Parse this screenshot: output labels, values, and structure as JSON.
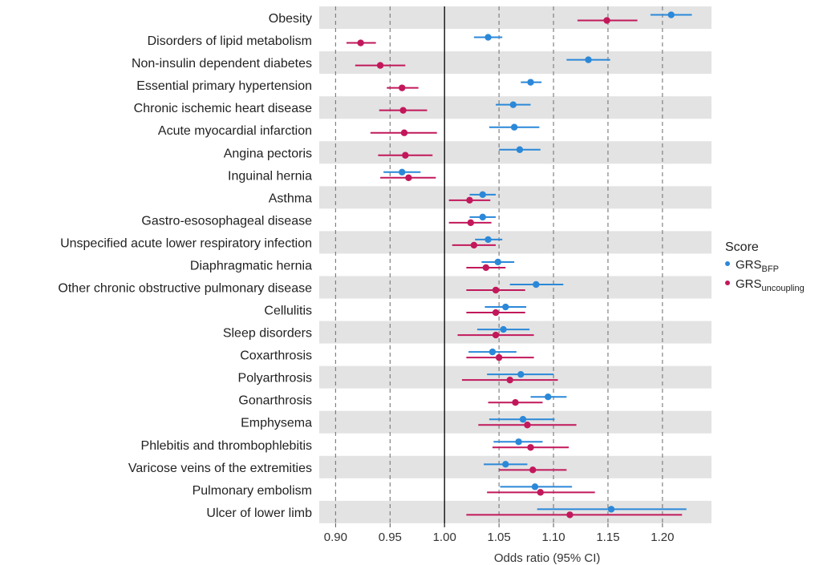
{
  "legend": {
    "title": "Score",
    "items": [
      {
        "base": "GRS",
        "sub": "BFP",
        "color": "#2b88d8"
      },
      {
        "base": "GRS",
        "sub": "uncoupling",
        "color": "#c2185b"
      }
    ]
  },
  "chart_data": {
    "type": "forest",
    "xlabel": "Odds ratio (95% CI)",
    "xlim": [
      0.885,
      1.245
    ],
    "xticks": [
      0.9,
      0.95,
      1.0,
      1.05,
      1.1,
      1.15,
      1.2
    ],
    "xtick_labels": [
      "0.90",
      "0.95",
      "1.00",
      "1.05",
      "1.10",
      "1.15",
      "1.20"
    ],
    "reference_line": 1.0,
    "grid": "dashed vertical",
    "legend_position": "right",
    "colors": {
      "bfp": "#2b88d8",
      "uncoupling": "#c2185b",
      "band": "#e3e3e3"
    },
    "categories": [
      "Obesity",
      "Disorders of lipid metabolism",
      "Non-insulin dependent diabetes",
      "Essential primary hypertension",
      "Chronic ischemic heart disease",
      "Acute myocardial infarction",
      "Angina pectoris",
      "Inguinal hernia",
      "Asthma",
      "Gastro-esosophageal disease",
      "Unspecified acute lower respiratory infection",
      "Diaphragmatic hernia",
      "Other chronic obstructive pulmonary disease",
      "Cellulitis",
      "Sleep disorders",
      "Coxarthrosis",
      "Polyarthrosis",
      "Gonarthrosis",
      "Emphysema",
      "Phlebitis and thrombophlebitis",
      "Varicose veins of the extremities",
      "Pulmonary embolism",
      "Ulcer of lower limb"
    ],
    "series": [
      {
        "name": "GRS BFP",
        "color": "#2b88d8",
        "estimate": [
          1.208,
          1.04,
          1.132,
          1.079,
          1.063,
          1.064,
          1.069,
          0.961,
          1.035,
          1.035,
          1.04,
          1.049,
          1.084,
          1.056,
          1.054,
          1.044,
          1.07,
          1.095,
          1.072,
          1.068,
          1.056,
          1.083,
          1.153
        ],
        "lower": [
          1.189,
          1.027,
          1.112,
          1.07,
          1.047,
          1.041,
          1.05,
          0.944,
          1.023,
          1.023,
          1.028,
          1.034,
          1.06,
          1.037,
          1.03,
          1.022,
          1.039,
          1.079,
          1.041,
          1.045,
          1.036,
          1.051,
          1.085
        ],
        "upper": [
          1.227,
          1.053,
          1.152,
          1.089,
          1.079,
          1.087,
          1.088,
          0.978,
          1.047,
          1.047,
          1.053,
          1.064,
          1.109,
          1.075,
          1.078,
          1.066,
          1.1,
          1.112,
          1.101,
          1.09,
          1.076,
          1.117,
          1.222
        ]
      },
      {
        "name": "GRS uncoupling",
        "color": "#c2185b",
        "estimate": [
          1.149,
          0.923,
          0.941,
          0.961,
          0.962,
          0.963,
          0.964,
          0.967,
          1.023,
          1.024,
          1.027,
          1.038,
          1.047,
          1.047,
          1.047,
          1.05,
          1.06,
          1.065,
          1.076,
          1.079,
          1.081,
          1.088,
          1.115
        ],
        "lower": [
          1.122,
          0.91,
          0.918,
          0.947,
          0.94,
          0.932,
          0.939,
          0.941,
          1.004,
          1.004,
          1.007,
          1.02,
          1.02,
          1.02,
          1.012,
          1.02,
          1.016,
          1.04,
          1.031,
          1.044,
          1.05,
          1.039,
          1.02
        ],
        "upper": [
          1.177,
          0.937,
          0.964,
          0.976,
          0.984,
          0.993,
          0.989,
          0.992,
          1.042,
          1.043,
          1.047,
          1.056,
          1.074,
          1.074,
          1.082,
          1.082,
          1.104,
          1.09,
          1.121,
          1.114,
          1.112,
          1.138,
          1.218
        ]
      }
    ]
  }
}
